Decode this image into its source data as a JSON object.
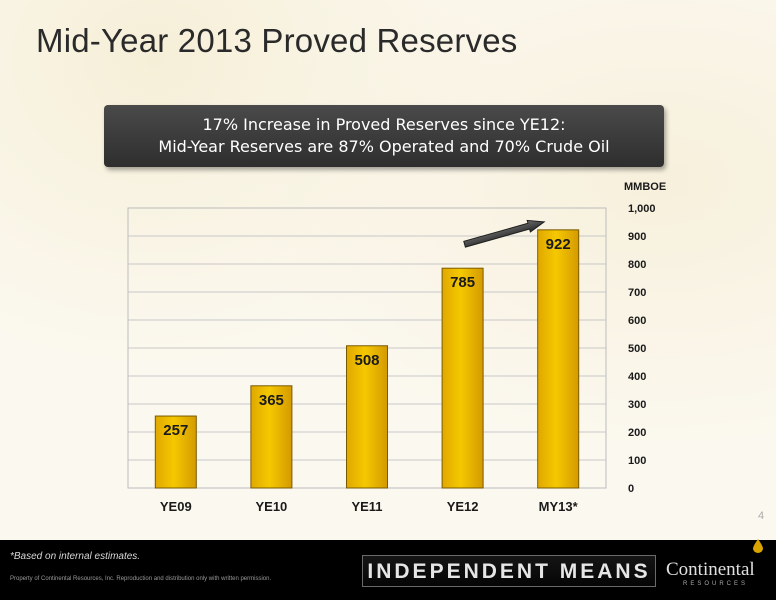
{
  "slide": {
    "title": "Mid-Year 2013 Proved Reserves",
    "callout_line1": "17% Increase in Proved Reserves since YE12:",
    "callout_line2": "Mid-Year Reserves are 87% Operated and 70% Crude Oil",
    "page_number": "4"
  },
  "footer": {
    "footnote": "*Based on internal estimates.",
    "copyright": "Property of Continental Resources, Inc. Reproduction and distribution only with written permission.",
    "brand_banner": "INDEPENDENT MEANS",
    "logo_name": "Continental",
    "logo_sub": "RESOURCES"
  },
  "chart_data": {
    "type": "bar",
    "categories": [
      "YE09",
      "YE10",
      "YE11",
      "YE12",
      "MY13*"
    ],
    "values": [
      257,
      365,
      508,
      785,
      922
    ],
    "data_labels": [
      "257",
      "365",
      "508",
      "785",
      "922"
    ],
    "ylabel": "MMBOE",
    "ylim": [
      0,
      1000
    ],
    "yticks": [
      0,
      100,
      200,
      300,
      400,
      500,
      600,
      700,
      800,
      900,
      1000
    ],
    "ytick_labels": [
      "0",
      "100",
      "200",
      "300",
      "400",
      "500",
      "600",
      "700",
      "800",
      "900",
      "1,000"
    ],
    "grid": true,
    "axis_side": "right",
    "annotation": "arrow from YE12 bar toward MY13* bar",
    "colors": {
      "bar": "#f5c800",
      "bar_edge": "#7a5a00",
      "grid": "#c8c8c8",
      "arrow": "#3a3a3a"
    }
  }
}
